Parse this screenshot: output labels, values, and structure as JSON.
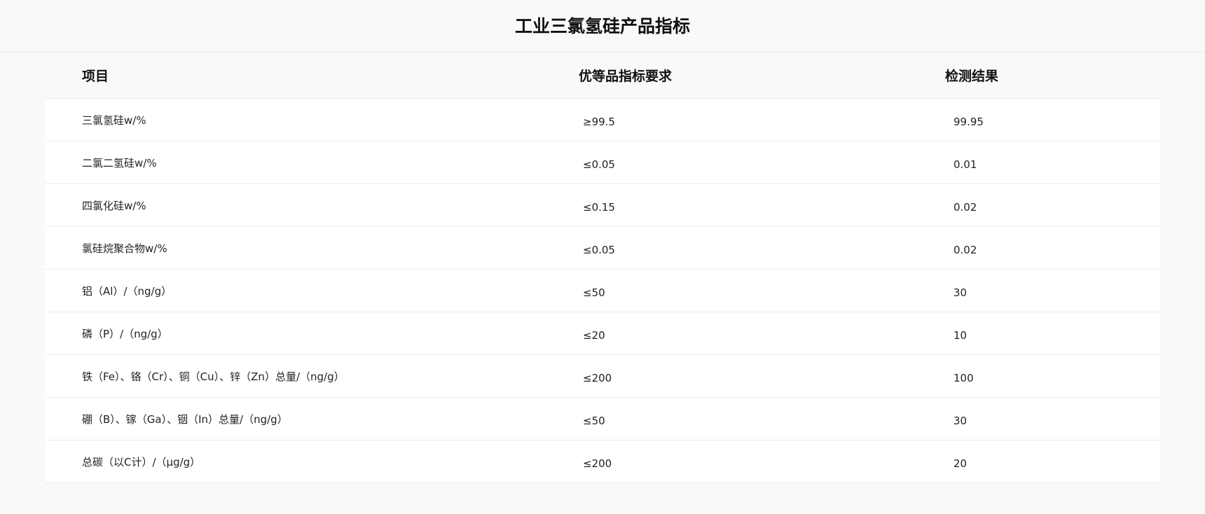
{
  "title": "工业三氯氢硅产品指标",
  "headers": [
    "项目",
    "优等品指标要求",
    "检测结果"
  ],
  "rows": [
    {
      "item": "三氯氢硅w/%",
      "requirement": "≥99.5",
      "result": "99.95"
    },
    {
      "item": "二氯二氢硅w/%",
      "requirement": "≤0.05",
      "result": "0.01"
    },
    {
      "item": "四氯化硅w/%",
      "requirement": "≤0.15",
      "result": "0.02"
    },
    {
      "item": "氯硅烷聚合物w/%",
      "requirement": "≤0.05",
      "result": "0.02"
    },
    {
      "item": "铝（Al）/（ng/g）",
      "requirement": "≤50",
      "result": "30"
    },
    {
      "item": "磷（P）/（ng/g）",
      "requirement": "≤20",
      "result": "10"
    },
    {
      "item": "铁（Fe）、铬（Cr）、铜（Cu）、锌（Zn）总量/（ng/g）",
      "requirement": "≤200",
      "result": "100"
    },
    {
      "item": "硼（B）、镓（Ga）、铟（In）总量/（ng/g）",
      "requirement": "≤50",
      "result": "30"
    },
    {
      "item": "总碳（以C计）/（μg/g）",
      "requirement": "≤200",
      "result": "20"
    }
  ]
}
